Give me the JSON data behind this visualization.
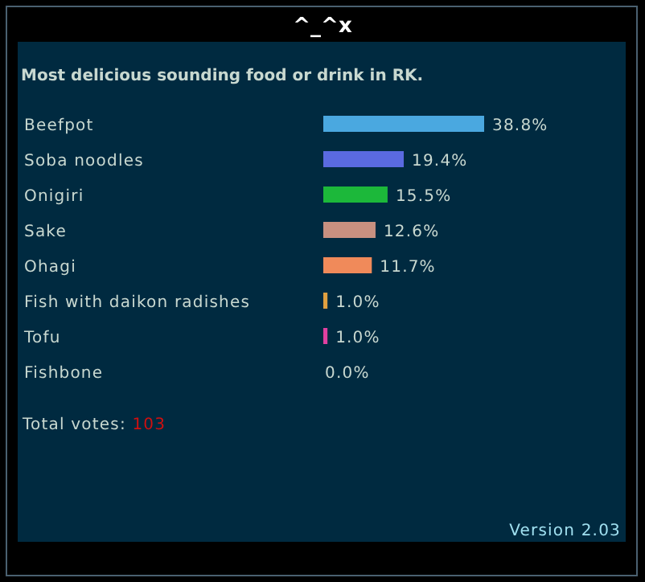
{
  "chart_data": {
    "type": "bar",
    "orientation": "horizontal",
    "title": "Most delicious sounding food or drink in RK.",
    "categories": [
      "Beefpot",
      "Soba noodles",
      "Onigiri",
      "Sake",
      "Ohagi",
      "Fish with daikon radishes",
      "Tofu",
      "Fishbone"
    ],
    "values": [
      38.8,
      19.4,
      15.5,
      12.6,
      11.7,
      1.0,
      1.0,
      0.0
    ],
    "colors": [
      "#4aa8e0",
      "#5a6ae0",
      "#1cb83a",
      "#c89080",
      "#f08a5a",
      "#e0a040",
      "#e040a0",
      null
    ],
    "value_labels": [
      "38.8%",
      "19.4%",
      "15.5%",
      "12.6%",
      "11.7%",
      "1.0%",
      "1.0%",
      "0.0%"
    ],
    "annotations": [
      "^_^x",
      "Total votes: 103",
      "Version 2.03"
    ]
  }
}
